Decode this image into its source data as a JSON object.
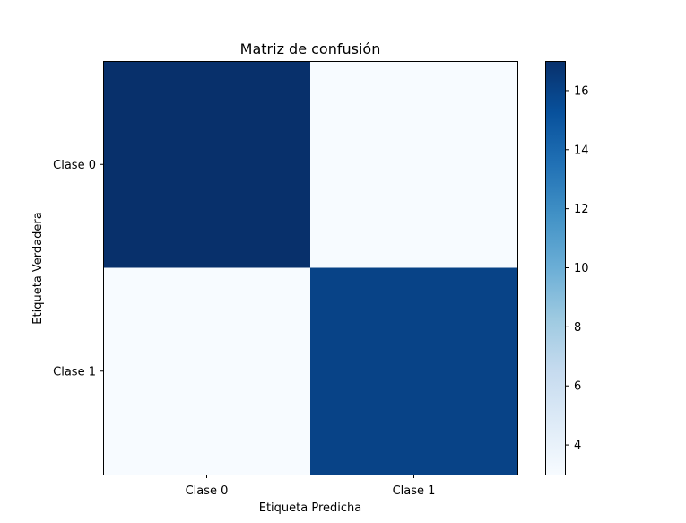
{
  "chart_data": {
    "type": "heatmap",
    "title": "Matriz de confusión",
    "xlabel": "Etiqueta Predicha",
    "ylabel": "Etiqueta Verdadera",
    "x_categories": [
      "Clase 0",
      "Clase 1"
    ],
    "y_categories": [
      "Clase 0",
      "Clase 1"
    ],
    "matrix": [
      [
        17,
        3
      ],
      [
        3,
        16
      ]
    ],
    "colormap": "Blues",
    "color_min": "#f7fbff",
    "color_max": "#08306b",
    "colorbar": {
      "vmin": 3,
      "vmax": 17,
      "ticks": [
        4,
        6,
        8,
        10,
        12,
        14,
        16
      ],
      "tick_labels": [
        "4",
        "6",
        "8",
        "10",
        "12",
        "14",
        "16"
      ]
    },
    "grid": false
  }
}
